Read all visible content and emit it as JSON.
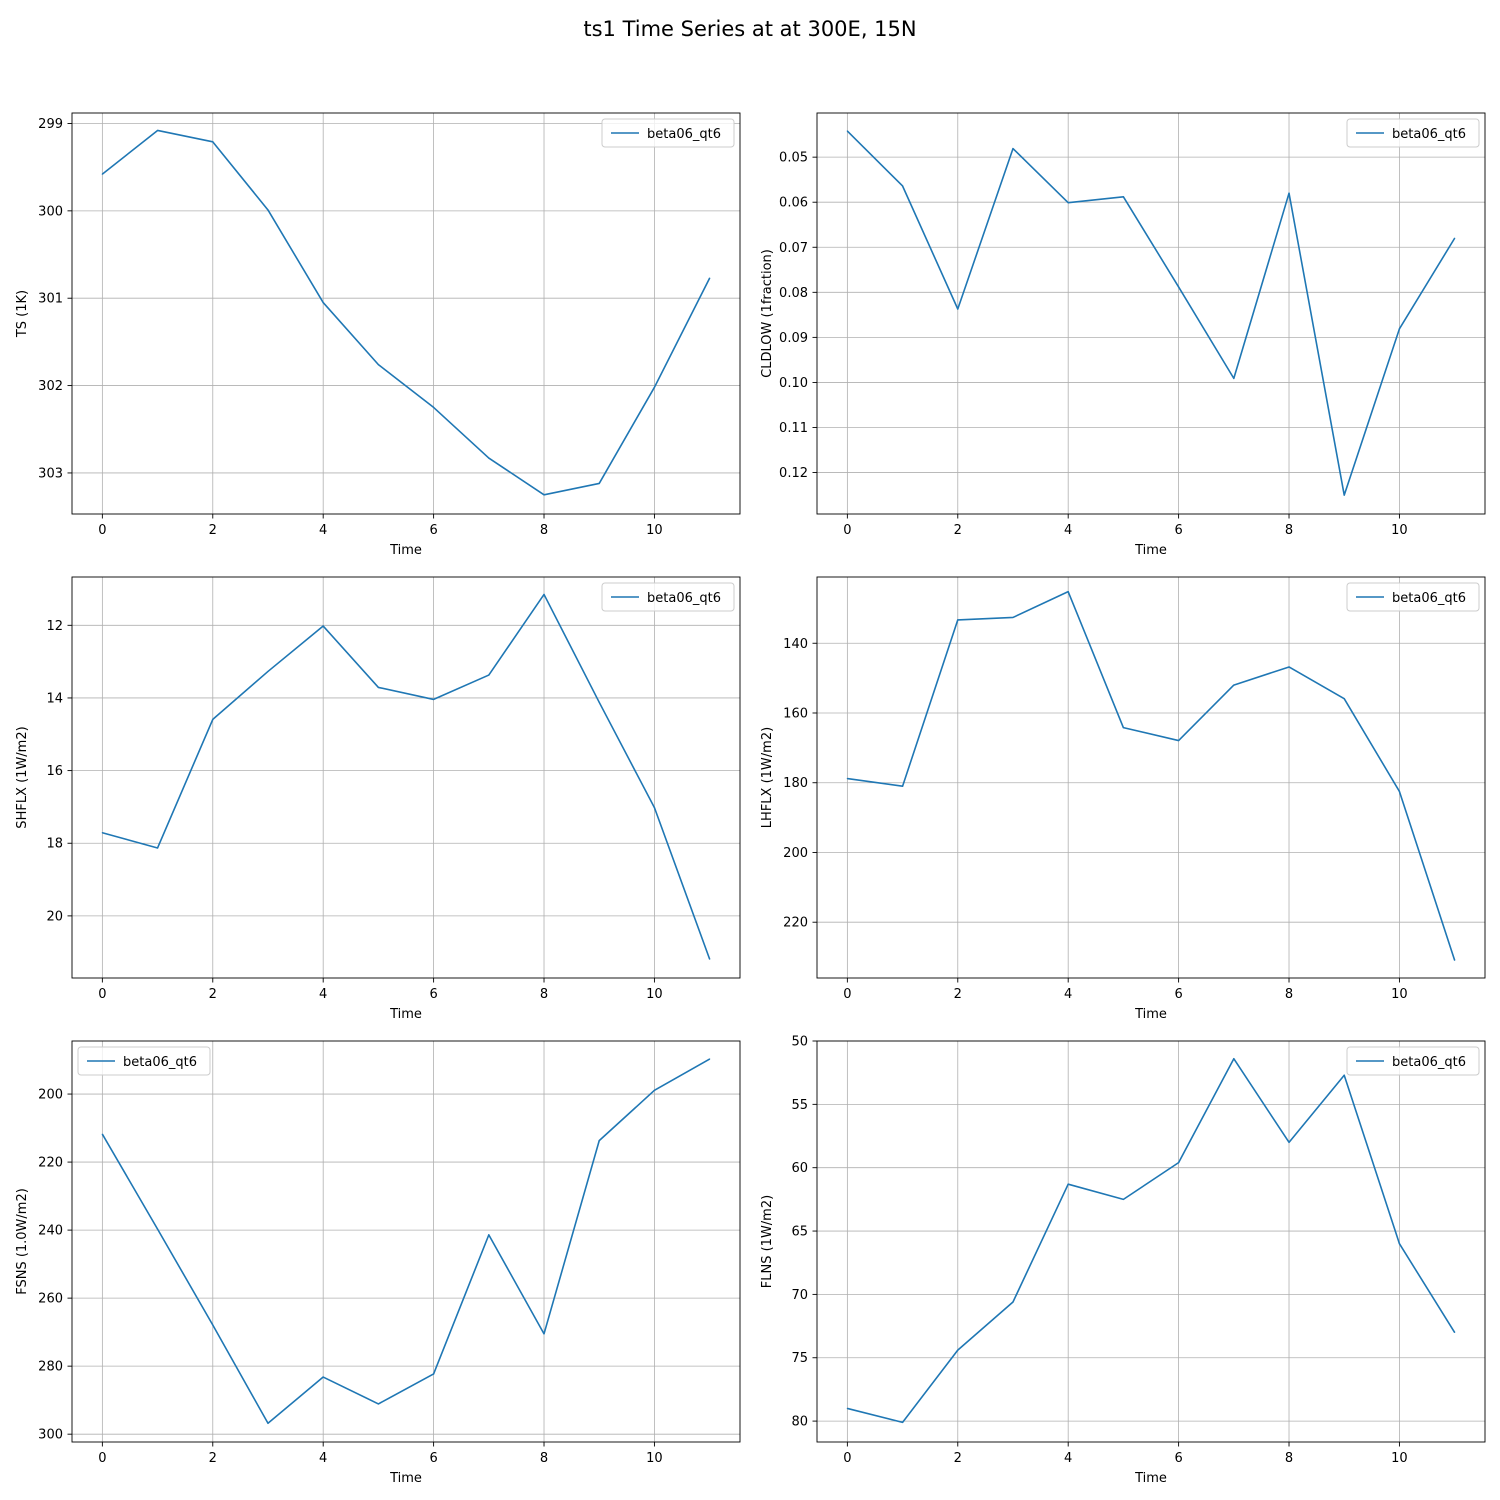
{
  "figure": {
    "title": "ts1 Time Series at at 300E, 15N"
  },
  "chart_data": [
    {
      "type": "line",
      "xlabel": "Time",
      "ylabel": "TS (1K)",
      "xlim": [
        -0.55,
        11.55
      ],
      "ylim": [
        303.47,
        298.88
      ],
      "y_inverted": true,
      "xticks": [
        0,
        2,
        4,
        6,
        8,
        10
      ],
      "xtick_labels": [
        "0",
        "2",
        "4",
        "6",
        "8",
        "10"
      ],
      "yticks": [
        299,
        300,
        301,
        302,
        303
      ],
      "ytick_labels": [
        "299",
        "300",
        "301",
        "302",
        "303"
      ],
      "grid": true,
      "legend_position": "upper-right",
      "x": [
        0,
        1,
        2,
        3,
        4,
        5,
        6,
        7,
        8,
        9,
        10,
        11
      ],
      "series": [
        {
          "name": "beta06_qt6",
          "color": "#1f77b4",
          "values": [
            299.58,
            299.08,
            299.21,
            299.99,
            301.05,
            301.76,
            302.25,
            302.83,
            303.25,
            303.12,
            302.02,
            300.77
          ]
        }
      ]
    },
    {
      "type": "line",
      "xlabel": "Time",
      "ylabel": "CLDLOW (1fraction)",
      "xlim": [
        -0.55,
        11.55
      ],
      "ylim": [
        0.1292,
        0.0402
      ],
      "y_inverted": true,
      "xticks": [
        0,
        2,
        4,
        6,
        8,
        10
      ],
      "xtick_labels": [
        "0",
        "2",
        "4",
        "6",
        "8",
        "10"
      ],
      "yticks": [
        0.05,
        0.06,
        0.07,
        0.08,
        0.09,
        0.1,
        0.11,
        0.12
      ],
      "ytick_labels": [
        "0.05",
        "0.06",
        "0.07",
        "0.08",
        "0.09",
        "0.10",
        "0.11",
        "0.12"
      ],
      "grid": true,
      "legend_position": "upper-right",
      "x": [
        0,
        1,
        2,
        3,
        4,
        5,
        6,
        7,
        8,
        9,
        10,
        11
      ],
      "series": [
        {
          "name": "beta06_qt6",
          "color": "#1f77b4",
          "values": [
            0.0442,
            0.0564,
            0.0837,
            0.0481,
            0.0601,
            0.0588,
            0.0788,
            0.0991,
            0.058,
            0.125,
            0.0881,
            0.068
          ]
        }
      ]
    },
    {
      "type": "line",
      "xlabel": "Time",
      "ylabel": "SHFLX (1W/m2)",
      "xlim": [
        -0.55,
        11.55
      ],
      "ylim": [
        21.71,
        10.67
      ],
      "y_inverted": true,
      "xticks": [
        0,
        2,
        4,
        6,
        8,
        10
      ],
      "xtick_labels": [
        "0",
        "2",
        "4",
        "6",
        "8",
        "10"
      ],
      "yticks": [
        12,
        14,
        16,
        18,
        20
      ],
      "ytick_labels": [
        "12",
        "14",
        "16",
        "18",
        "20"
      ],
      "grid": true,
      "legend_position": "upper-right",
      "x": [
        0,
        1,
        2,
        3,
        4,
        5,
        6,
        7,
        8,
        9,
        10,
        11
      ],
      "series": [
        {
          "name": "beta06_qt6",
          "color": "#1f77b4",
          "values": [
            17.71,
            18.13,
            14.59,
            13.27,
            12.02,
            13.71,
            14.04,
            13.37,
            11.15,
            14.12,
            17.02,
            21.19
          ]
        }
      ]
    },
    {
      "type": "line",
      "xlabel": "Time",
      "ylabel": "LHFLX (1W/m2)",
      "xlim": [
        -0.55,
        11.55
      ],
      "ylim": [
        236.0,
        121.0
      ],
      "y_inverted": true,
      "xticks": [
        0,
        2,
        4,
        6,
        8,
        10
      ],
      "xtick_labels": [
        "0",
        "2",
        "4",
        "6",
        "8",
        "10"
      ],
      "yticks": [
        140,
        160,
        180,
        200,
        220
      ],
      "ytick_labels": [
        "140",
        "160",
        "180",
        "200",
        "220"
      ],
      "grid": true,
      "legend_position": "upper-right",
      "x": [
        0,
        1,
        2,
        3,
        4,
        5,
        6,
        7,
        8,
        9,
        10,
        11
      ],
      "series": [
        {
          "name": "beta06_qt6",
          "color": "#1f77b4",
          "values": [
            178.8,
            181.0,
            133.3,
            132.6,
            125.2,
            164.2,
            167.9,
            152.0,
            146.8,
            155.9,
            182.5,
            230.9
          ]
        }
      ]
    },
    {
      "type": "line",
      "xlabel": "Time",
      "ylabel": "FSNS (1.0W/m2)",
      "xlim": [
        -0.55,
        11.55
      ],
      "ylim": [
        302.3,
        184.4
      ],
      "y_inverted": true,
      "xticks": [
        0,
        2,
        4,
        6,
        8,
        10
      ],
      "xtick_labels": [
        "0",
        "2",
        "4",
        "6",
        "8",
        "10"
      ],
      "yticks": [
        200,
        220,
        240,
        260,
        280,
        300
      ],
      "ytick_labels": [
        "200",
        "220",
        "240",
        "260",
        "280",
        "300"
      ],
      "grid": true,
      "legend_position": "upper-left",
      "x": [
        0,
        1,
        2,
        3,
        4,
        5,
        6,
        7,
        8,
        9,
        10,
        11
      ],
      "series": [
        {
          "name": "beta06_qt6",
          "color": "#1f77b4",
          "values": [
            211.8,
            239.7,
            267.9,
            296.8,
            283.2,
            291.1,
            282.3,
            241.4,
            270.5,
            213.7,
            198.9,
            189.7
          ]
        }
      ]
    },
    {
      "type": "line",
      "xlabel": "Time",
      "ylabel": "FLNS (1W/m2)",
      "xlim": [
        -0.55,
        11.55
      ],
      "ylim": [
        81.65,
        50.0
      ],
      "y_inverted": true,
      "xticks": [
        0,
        2,
        4,
        6,
        8,
        10
      ],
      "xtick_labels": [
        "0",
        "2",
        "4",
        "6",
        "8",
        "10"
      ],
      "yticks": [
        50,
        55,
        60,
        65,
        70,
        75,
        80
      ],
      "ytick_labels": [
        "50",
        "55",
        "60",
        "65",
        "70",
        "75",
        "80"
      ],
      "grid": true,
      "legend_position": "upper-right",
      "x": [
        0,
        1,
        2,
        3,
        4,
        5,
        6,
        7,
        8,
        9,
        10,
        11
      ],
      "series": [
        {
          "name": "beta06_qt6",
          "color": "#1f77b4",
          "values": [
            79.0,
            80.1,
            74.4,
            70.6,
            61.3,
            62.5,
            59.6,
            51.4,
            58.0,
            52.7,
            66.0,
            73.0
          ]
        }
      ]
    }
  ]
}
